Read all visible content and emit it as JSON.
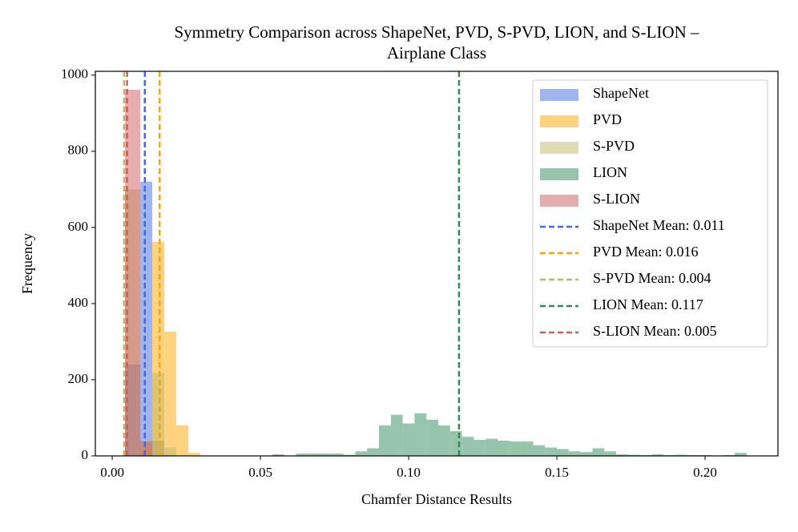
{
  "chart_data": {
    "type": "histogram",
    "title": [
      "Symmetry Comparison across ShapeNet, PVD, S-PVD, LION, and S-LION –",
      "Airplane Class"
    ],
    "xlabel": "Chamfer Distance Results",
    "ylabel": "Frequency",
    "xlim": [
      -0.0057,
      0.2246
    ],
    "ylim": [
      0,
      1010
    ],
    "xticks": [
      {
        "value": 0,
        "label": "0.00"
      },
      {
        "value": 0.05,
        "label": "0.05"
      },
      {
        "value": 0.1,
        "label": "0.10"
      },
      {
        "value": 0.15,
        "label": "0.15"
      },
      {
        "value": 0.2,
        "label": "0.20"
      }
    ],
    "yticks": [
      0,
      200,
      400,
      600,
      800,
      1000
    ],
    "opacity": 0.5,
    "legend": "upper right",
    "series": [
      {
        "name": "ShapeNet",
        "color": "#4169e1",
        "bins": [
          0.0043,
          0.0095,
          0.0135,
          0.0175
        ],
        "values": [
          240,
          720,
          40
        ]
      },
      {
        "name": "PVD",
        "color": "#ffa500",
        "bins": [
          0.0095,
          0.0135,
          0.0176,
          0.0216,
          0.0257,
          0.0297
        ],
        "values": [
          20,
          562,
          326,
          80,
          8
        ]
      },
      {
        "name": "S-PVD",
        "color": "#bdb76b",
        "bins": [
          0.0043,
          0.0095,
          0.0135,
          0.0176,
          0.0216
        ],
        "values": [
          700,
          40,
          218,
          22
        ]
      },
      {
        "name": "LION",
        "color": "#2e8b57",
        "bins": [
          0.054,
          0.058,
          0.062,
          0.066,
          0.07,
          0.074,
          0.078,
          0.082,
          0.086,
          0.09,
          0.094,
          0.098,
          0.102,
          0.106,
          0.11,
          0.114,
          0.118,
          0.122,
          0.126,
          0.13,
          0.134,
          0.138,
          0.142,
          0.146,
          0.15,
          0.154,
          0.158,
          0.162,
          0.166,
          0.17,
          0.174,
          0.178,
          0.182,
          0.186,
          0.19,
          0.194,
          0.198,
          0.202,
          0.206,
          0.21,
          0.214,
          0.218
        ],
        "values": [
          4,
          0,
          6,
          6,
          6,
          6,
          3,
          12,
          20,
          80,
          108,
          85,
          112,
          95,
          80,
          65,
          50,
          42,
          45,
          40,
          38,
          38,
          28,
          22,
          18,
          12,
          10,
          20,
          12,
          4,
          3,
          2,
          4,
          2,
          3,
          2,
          2,
          1,
          2,
          8,
          1
        ]
      },
      {
        "name": "S-LION",
        "color": "#cd5c5c",
        "bins": [
          0.0043,
          0.0095,
          0.0135
        ],
        "values": [
          962,
          38
        ]
      }
    ],
    "mean_lines": [
      {
        "name": "ShapeNet Mean: 0.011",
        "color": "#4169e1",
        "value": 0.011
      },
      {
        "name": "PVD Mean: 0.016",
        "color": "#ffa500",
        "value": 0.016
      },
      {
        "name": "S-PVD Mean: 0.004",
        "color": "#bdb76b",
        "value": 0.004
      },
      {
        "name": "LION Mean: 0.117",
        "color": "#2e8b57",
        "value": 0.117
      },
      {
        "name": "S-LION Mean: 0.005",
        "color": "#cd5c5c",
        "value": 0.005
      }
    ]
  }
}
